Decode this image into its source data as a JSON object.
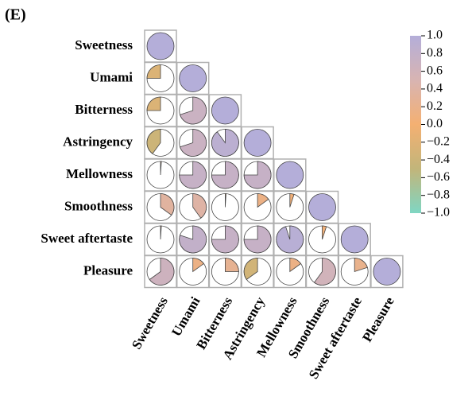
{
  "chart_data": {
    "type": "correlation-pie",
    "title": "(E)",
    "labels": [
      "Sweetness",
      "Umami",
      "Bitterness",
      "Astringency",
      "Mellowness",
      "Smoothness",
      "Sweet aftertaste",
      "Pleasure"
    ],
    "matrix": [
      [
        1
      ],
      [
        -0.25,
        1
      ],
      [
        -0.25,
        0.7,
        1
      ],
      [
        -0.4,
        0.7,
        0.9,
        1
      ],
      [
        0.01,
        0.75,
        0.75,
        0.75,
        1
      ],
      [
        0.35,
        0.4,
        0.01,
        0.15,
        0.05,
        1
      ],
      [
        0.01,
        0.8,
        0.75,
        0.75,
        0.95,
        0.05,
        1
      ],
      [
        0.65,
        0.15,
        0.25,
        -0.35,
        0.15,
        0.6,
        0.2,
        1
      ]
    ],
    "clim": [
      -1,
      1
    ],
    "colors": [
      "#7fd6c3",
      "#c2b57a",
      "#f4b072",
      "#d8b4b2",
      "#b4aed9"
    ],
    "cticks": [
      {
        "value": 1,
        "label": "1.0"
      },
      0.8,
      0.6,
      0.4,
      0.2,
      {
        "value": 0,
        "label": "0.0"
      },
      {
        "value": -0.2,
        "label": "−0.2"
      },
      {
        "value": -0.4,
        "label": "−0.4"
      },
      {
        "value": -0.6,
        "label": "−0.6"
      },
      {
        "value": -0.8,
        "label": "−0.8"
      },
      {
        "value": -1,
        "label": "−1.0"
      }
    ]
  }
}
